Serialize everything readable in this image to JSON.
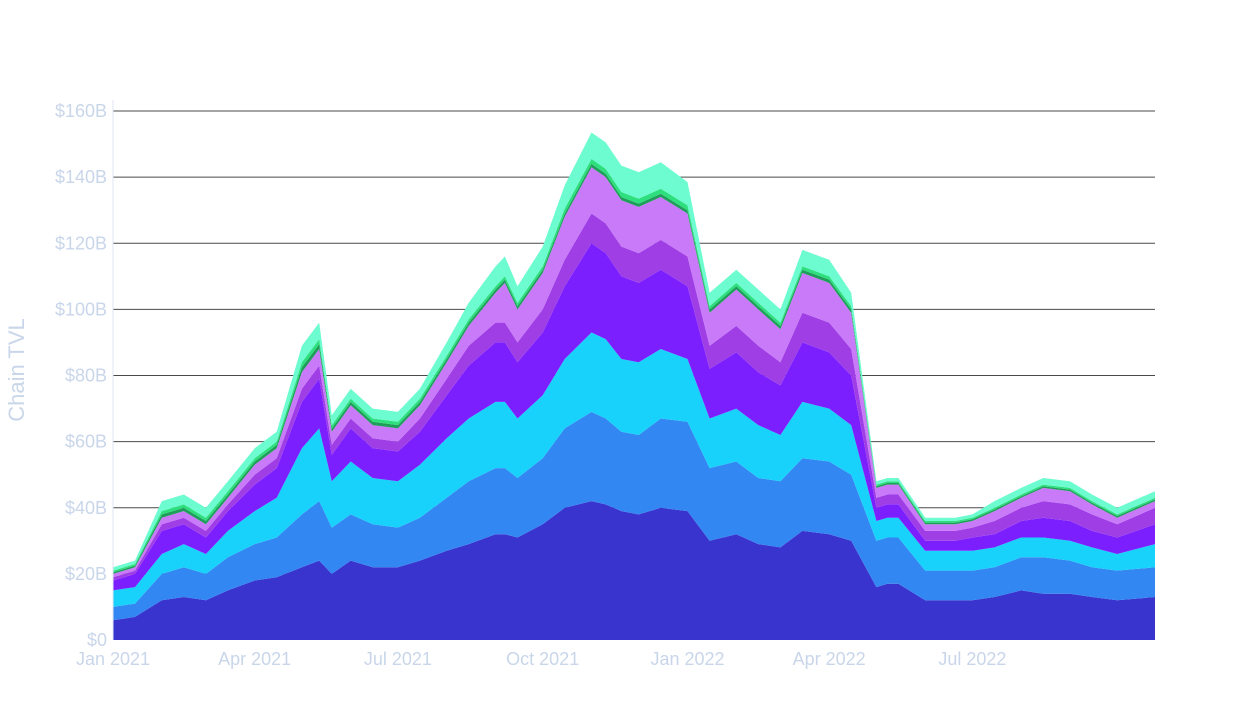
{
  "chart_data": {
    "type": "area",
    "stacked": true,
    "ylabel": "Chain TVL",
    "xlabel": "",
    "ylim": [
      0,
      160
    ],
    "y_unit": "billions USD",
    "y_ticks": [
      0,
      20,
      40,
      60,
      80,
      100,
      120,
      140,
      160
    ],
    "y_tick_labels": [
      "$0",
      "$20B",
      "$40B",
      "$60B",
      "$80B",
      "$100B",
      "$120B",
      "$140B",
      "$160B"
    ],
    "x_range": [
      "2021-01-01",
      "2022-10-25"
    ],
    "x_ticks": [
      "2021-01-01",
      "2021-04-01",
      "2021-07-01",
      "2021-10-01",
      "2022-01-01",
      "2022-04-01",
      "2022-07-01"
    ],
    "x_tick_labels": [
      "Jan 2021",
      "Apr 2021",
      "Jul 2021",
      "Oct 2021",
      "Jan 2022",
      "Apr 2022",
      "Jul 2022"
    ],
    "grid": true,
    "legend": "none",
    "x": [
      "2021-01-01",
      "2021-01-15",
      "2021-02-01",
      "2021-02-15",
      "2021-03-01",
      "2021-03-15",
      "2021-04-01",
      "2021-04-15",
      "2021-05-01",
      "2021-05-12",
      "2021-05-20",
      "2021-06-01",
      "2021-06-15",
      "2021-07-01",
      "2021-07-15",
      "2021-08-01",
      "2021-08-15",
      "2021-09-01",
      "2021-09-07",
      "2021-09-15",
      "2021-10-01",
      "2021-10-15",
      "2021-11-01",
      "2021-11-10",
      "2021-11-20",
      "2021-12-01",
      "2021-12-15",
      "2022-01-01",
      "2022-01-15",
      "2022-02-01",
      "2022-02-15",
      "2022-03-01",
      "2022-03-15",
      "2022-04-01",
      "2022-04-15",
      "2022-05-01",
      "2022-05-08",
      "2022-05-15",
      "2022-06-01",
      "2022-06-10",
      "2022-06-20",
      "2022-07-01",
      "2022-07-15",
      "2022-08-01",
      "2022-08-15",
      "2022-09-01",
      "2022-09-15",
      "2022-10-01",
      "2022-10-25"
    ],
    "series": [
      {
        "color": "#3a34cf",
        "values": [
          6,
          7,
          12,
          13,
          12,
          15,
          18,
          19,
          22,
          24,
          20,
          24,
          22,
          22,
          24,
          27,
          29,
          32,
          32,
          31,
          35,
          40,
          42,
          41,
          39,
          38,
          40,
          39,
          30,
          32,
          29,
          28,
          33,
          32,
          30,
          16,
          17,
          17,
          12,
          12,
          12,
          12,
          13,
          15,
          14,
          14,
          13,
          12,
          13
        ]
      },
      {
        "color": "#3387f2",
        "values": [
          4,
          4,
          8,
          9,
          8,
          10,
          11,
          12,
          16,
          18,
          14,
          14,
          13,
          12,
          13,
          16,
          19,
          20,
          20,
          18,
          20,
          24,
          27,
          26,
          24,
          24,
          27,
          27,
          22,
          22,
          20,
          20,
          22,
          22,
          20,
          14,
          14,
          14,
          9,
          9,
          9,
          9,
          9,
          10,
          11,
          10,
          9,
          9,
          9
        ]
      },
      {
        "color": "#18d2fc",
        "values": [
          5,
          5,
          6,
          7,
          6,
          8,
          10,
          12,
          20,
          22,
          14,
          16,
          14,
          14,
          16,
          18,
          19,
          20,
          20,
          18,
          19,
          21,
          24,
          24,
          22,
          22,
          21,
          19,
          15,
          16,
          16,
          14,
          17,
          16,
          15,
          6,
          6,
          6,
          6,
          6,
          6,
          6,
          6,
          6,
          6,
          6,
          6,
          5,
          7
        ]
      },
      {
        "color": "#7c1fff",
        "values": [
          3,
          4,
          7,
          6,
          5,
          6,
          8,
          9,
          14,
          15,
          8,
          10,
          9,
          9,
          10,
          13,
          16,
          18,
          18,
          17,
          19,
          22,
          27,
          26,
          25,
          24,
          24,
          22,
          15,
          17,
          16,
          15,
          18,
          17,
          15,
          4,
          4,
          4,
          3,
          3,
          3,
          4,
          4,
          5,
          6,
          6,
          5,
          5,
          6
        ]
      },
      {
        "color": "#a03ee6",
        "values": [
          1,
          1,
          2,
          2,
          2,
          2,
          3,
          3,
          4,
          4,
          3,
          3,
          3,
          3,
          4,
          5,
          6,
          6,
          6,
          6,
          7,
          8,
          9,
          9,
          9,
          9,
          9,
          9,
          7,
          8,
          8,
          7,
          9,
          9,
          8,
          3,
          3,
          3,
          3,
          3,
          3,
          3,
          4,
          4,
          5,
          5,
          5,
          4,
          5
        ]
      },
      {
        "color": "#c87af9",
        "values": [
          1,
          1,
          2,
          2,
          2,
          2,
          3,
          3,
          5,
          5,
          4,
          4,
          4,
          4,
          4,
          5,
          6,
          9,
          12,
          10,
          11,
          13,
          14,
          14,
          14,
          14,
          13,
          13,
          10,
          11,
          11,
          10,
          12,
          12,
          11,
          3,
          3,
          3,
          2,
          2,
          2,
          2,
          3,
          3,
          4,
          4,
          3,
          2,
          2
        ]
      },
      {
        "color": "#1e9e5a",
        "values": [
          0.5,
          0.5,
          1,
          1,
          1,
          1,
          1,
          1,
          1.5,
          1.5,
          1,
          1,
          1,
          1,
          1,
          1,
          1,
          1,
          1,
          1,
          1,
          1,
          1,
          1,
          1,
          1,
          1,
          1,
          1,
          1,
          1,
          1,
          1,
          1,
          1,
          0.5,
          0.5,
          0.5,
          0.5,
          0.5,
          0.5,
          0.5,
          0.5,
          0.5,
          0.5,
          0.5,
          0.5,
          0.5,
          0.5
        ]
      },
      {
        "color": "#2ddf7d",
        "values": [
          0.5,
          0.5,
          1,
          1,
          1,
          1,
          1,
          1,
          1.5,
          1.5,
          1,
          1,
          1,
          1,
          1,
          1,
          1,
          1,
          1,
          1,
          1,
          1.5,
          1.5,
          1.5,
          1.5,
          1.5,
          1.5,
          1.5,
          1,
          1,
          1,
          1,
          1,
          1,
          1,
          0.5,
          0.5,
          0.5,
          0.5,
          0.5,
          0.5,
          0.5,
          0.5,
          0.5,
          0.5,
          0.5,
          0.5,
          0.5,
          0.5
        ]
      },
      {
        "color": "#6cfccf",
        "values": [
          1,
          1,
          3,
          3,
          3,
          3,
          3,
          3,
          5,
          5,
          3,
          3,
          3,
          3,
          3,
          4,
          5,
          6,
          6,
          5,
          6,
          7,
          8,
          8,
          8,
          8,
          8,
          7,
          4,
          4,
          4,
          4,
          5,
          5,
          4,
          1,
          1,
          1,
          1,
          1,
          1,
          1,
          2,
          2,
          2,
          2,
          2,
          2,
          2
        ]
      }
    ]
  }
}
